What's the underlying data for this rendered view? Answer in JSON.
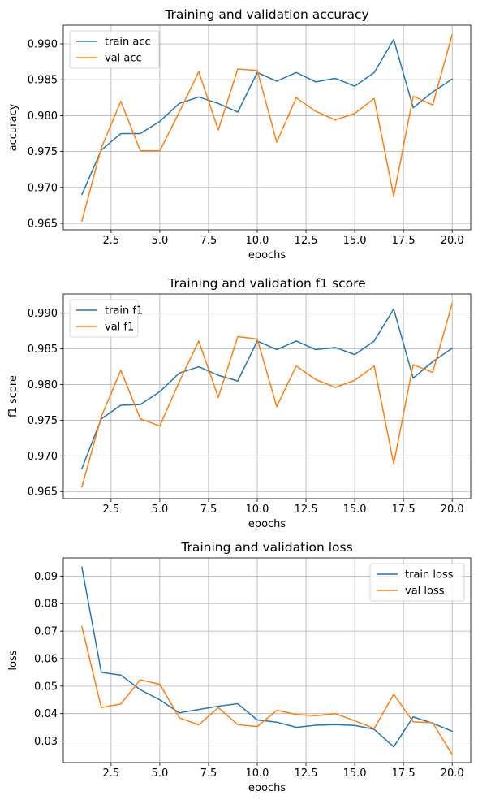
{
  "colors": {
    "train": "#1f77b4",
    "val": "#ff7f0e",
    "grid": "#b0b0b0"
  },
  "chart_data": [
    {
      "type": "line",
      "title": "Training and validation accuracy",
      "xlabel": "epochs",
      "ylabel": "accuracy",
      "xlim": [
        0.05,
        20.95
      ],
      "ylim": [
        0.9641,
        0.9926
      ],
      "xticks": [
        2.5,
        5.0,
        7.5,
        10.0,
        12.5,
        15.0,
        17.5,
        20.0
      ],
      "xtick_labels": [
        "2.5",
        "5.0",
        "7.5",
        "10.0",
        "12.5",
        "15.0",
        "17.5",
        "20.0"
      ],
      "yticks": [
        0.965,
        0.97,
        0.975,
        0.98,
        0.985,
        0.99
      ],
      "ytick_labels": [
        "0.965",
        "0.970",
        "0.975",
        "0.980",
        "0.985",
        "0.990"
      ],
      "grid": true,
      "legend_position": "upper-left",
      "x": [
        1,
        2,
        3,
        4,
        5,
        6,
        7,
        8,
        9,
        10,
        11,
        12,
        13,
        14,
        15,
        16,
        17,
        18,
        19,
        20
      ],
      "series": [
        {
          "name": "train acc",
          "color": "#1f77b4",
          "values": [
            0.969,
            0.9752,
            0.9775,
            0.9775,
            0.9792,
            0.9817,
            0.9826,
            0.9817,
            0.9805,
            0.986,
            0.9848,
            0.986,
            0.9847,
            0.9852,
            0.9841,
            0.986,
            0.9906,
            0.9811,
            0.9833,
            0.9851
          ]
        },
        {
          "name": "val acc",
          "color": "#ff7f0e",
          "values": [
            0.9653,
            0.9755,
            0.982,
            0.9751,
            0.9751,
            0.9805,
            0.9861,
            0.978,
            0.9865,
            0.9863,
            0.9763,
            0.9825,
            0.9806,
            0.9794,
            0.9803,
            0.9824,
            0.9688,
            0.9827,
            0.9815,
            0.9913
          ]
        }
      ]
    },
    {
      "type": "line",
      "title": "Training and validation f1 score",
      "xlabel": "epochs",
      "ylabel": "f1 score",
      "xlim": [
        0.05,
        20.95
      ],
      "ylim": [
        0.964,
        0.9927
      ],
      "xticks": [
        2.5,
        5.0,
        7.5,
        10.0,
        12.5,
        15.0,
        17.5,
        20.0
      ],
      "xtick_labels": [
        "2.5",
        "5.0",
        "7.5",
        "10.0",
        "12.5",
        "15.0",
        "17.5",
        "20.0"
      ],
      "yticks": [
        0.965,
        0.97,
        0.975,
        0.98,
        0.985,
        0.99
      ],
      "ytick_labels": [
        "0.965",
        "0.970",
        "0.975",
        "0.980",
        "0.985",
        "0.990"
      ],
      "grid": true,
      "legend_position": "upper-left",
      "x": [
        1,
        2,
        3,
        4,
        5,
        6,
        7,
        8,
        9,
        10,
        11,
        12,
        13,
        14,
        15,
        16,
        17,
        18,
        19,
        20
      ],
      "series": [
        {
          "name": "train f1",
          "color": "#1f77b4",
          "values": [
            0.9682,
            0.9752,
            0.9771,
            0.9772,
            0.979,
            0.9816,
            0.9825,
            0.9813,
            0.9805,
            0.9861,
            0.9849,
            0.9861,
            0.9849,
            0.9852,
            0.9842,
            0.9861,
            0.9906,
            0.9809,
            0.9832,
            0.9851
          ]
        },
        {
          "name": "val f1",
          "color": "#ff7f0e",
          "values": [
            0.9656,
            0.9755,
            0.982,
            0.9752,
            0.9742,
            0.9804,
            0.9861,
            0.9782,
            0.9867,
            0.9864,
            0.9769,
            0.9826,
            0.9807,
            0.9796,
            0.9806,
            0.9826,
            0.9689,
            0.9828,
            0.9817,
            0.9914
          ]
        }
      ]
    },
    {
      "type": "line",
      "title": "Training and validation loss",
      "xlabel": "epochs",
      "ylabel": "loss",
      "xlim": [
        0.05,
        20.95
      ],
      "ylim": [
        0.0222,
        0.0966
      ],
      "xticks": [
        2.5,
        5.0,
        7.5,
        10.0,
        12.5,
        15.0,
        17.5,
        20.0
      ],
      "xtick_labels": [
        "2.5",
        "5.0",
        "7.5",
        "10.0",
        "12.5",
        "15.0",
        "17.5",
        "20.0"
      ],
      "yticks": [
        0.03,
        0.04,
        0.05,
        0.06,
        0.07,
        0.08,
        0.09
      ],
      "ytick_labels": [
        "0.03",
        "0.04",
        "0.05",
        "0.06",
        "0.07",
        "0.08",
        "0.09"
      ],
      "grid": true,
      "legend_position": "upper-right",
      "x": [
        1,
        2,
        3,
        4,
        5,
        6,
        7,
        8,
        9,
        10,
        11,
        12,
        13,
        14,
        15,
        16,
        17,
        18,
        19,
        20
      ],
      "series": [
        {
          "name": "train loss",
          "color": "#1f77b4",
          "values": [
            0.0933,
            0.055,
            0.054,
            0.0487,
            0.045,
            0.0403,
            0.0415,
            0.0427,
            0.0436,
            0.0377,
            0.0369,
            0.035,
            0.0358,
            0.036,
            0.0357,
            0.0343,
            0.0279,
            0.0388,
            0.0365,
            0.0336
          ]
        },
        {
          "name": "val loss",
          "color": "#ff7f0e",
          "values": [
            0.0717,
            0.0422,
            0.0435,
            0.0523,
            0.0507,
            0.0385,
            0.0359,
            0.0422,
            0.036,
            0.0353,
            0.0412,
            0.0397,
            0.0392,
            0.04,
            0.0374,
            0.0346,
            0.047,
            0.037,
            0.0367,
            0.0251
          ]
        }
      ]
    }
  ]
}
